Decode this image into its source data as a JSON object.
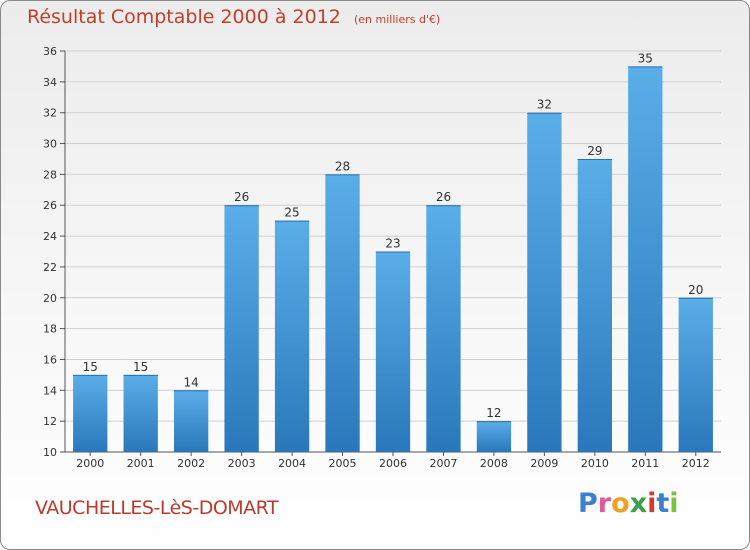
{
  "chart_data": {
    "type": "bar",
    "title": "Résultat Comptable 2000 à 2012",
    "subtitle": "(en milliers d'€)",
    "categories": [
      "2000",
      "2001",
      "2002",
      "2003",
      "2004",
      "2005",
      "2006",
      "2007",
      "2008",
      "2009",
      "2010",
      "2011",
      "2012"
    ],
    "values": [
      15,
      15,
      14,
      26,
      25,
      28,
      23,
      26,
      12,
      32,
      29,
      35,
      20
    ],
    "ylim": [
      10,
      36
    ],
    "yticks": [
      10,
      12,
      14,
      16,
      18,
      20,
      22,
      24,
      26,
      28,
      30,
      32,
      34,
      36
    ],
    "grid": true,
    "colors": {
      "bar_light": "#5aaee8",
      "bar_dark": "#2a78bb",
      "grid": "#cfcfcf"
    }
  },
  "footer": {
    "commune": "VAUCHELLES-LèS-DOMART",
    "logo_letters": [
      "P",
      "r",
      "o",
      "x",
      "i",
      "t",
      "i"
    ],
    "logo_colors": [
      "#3d7fd0",
      "#e05a9b",
      "#f0a020",
      "#3aa04a",
      "#d63a2e",
      "#3d7fd0",
      "#7ac142"
    ]
  }
}
